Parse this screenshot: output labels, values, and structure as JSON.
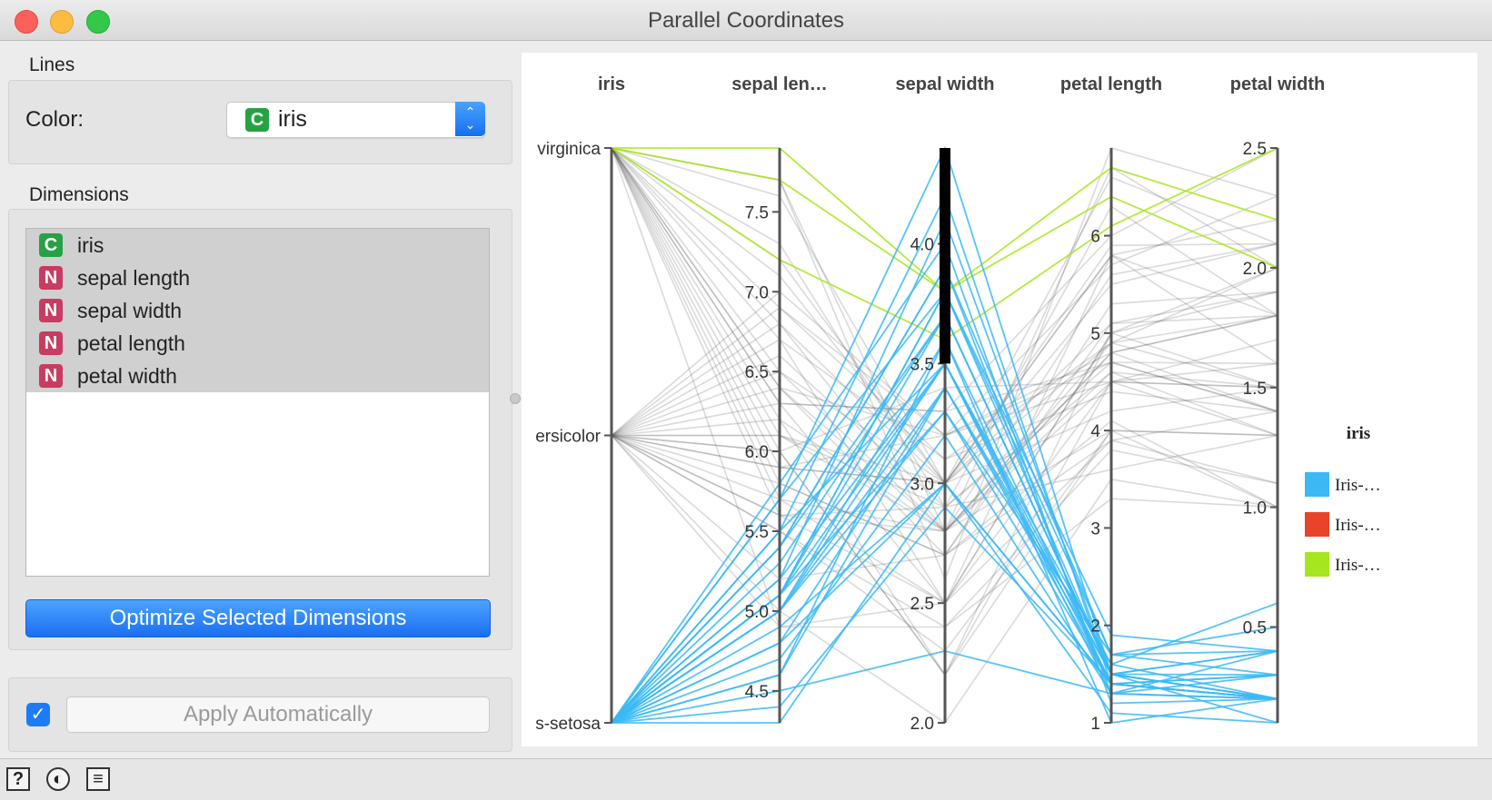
{
  "window": {
    "title": "Parallel Coordinates"
  },
  "controls": {
    "lines_label": "Lines",
    "color_label": "Color:",
    "color_value": "iris",
    "color_type_badge": "C",
    "dimensions_label": "Dimensions",
    "dimensions": [
      {
        "badge": "C",
        "label": "iris"
      },
      {
        "badge": "N",
        "label": "sepal length"
      },
      {
        "badge": "N",
        "label": "sepal width"
      },
      {
        "badge": "N",
        "label": "petal length"
      },
      {
        "badge": "N",
        "label": "petal width"
      }
    ],
    "optimize_button": "Optimize Selected Dimensions",
    "apply_checked": true,
    "apply_button": "Apply Automatically"
  },
  "statusbar": {
    "icons": [
      "help-icon",
      "report-icon",
      "output-icon"
    ],
    "help_glyph": "?"
  },
  "colors": {
    "accent": "#1a72f2",
    "setosa": "#3bb9f5",
    "versicolor": "#e8442a",
    "virginica": "#a6e61f",
    "context": "#555555",
    "brush": "#000000"
  },
  "chart_data": {
    "type": "parallel-coordinates",
    "axes": [
      {
        "title": "iris",
        "kind": "categorical",
        "ticks": [
          "virginica",
          "ersicolor",
          "s-setosa"
        ]
      },
      {
        "title": "sepal len…",
        "kind": "numeric",
        "range": [
          4.3,
          7.9
        ],
        "ticks": [
          "4.5",
          "5.0",
          "5.5",
          "6.0",
          "6.5",
          "7.0",
          "7.5"
        ]
      },
      {
        "title": "sepal width",
        "kind": "numeric",
        "range": [
          2.0,
          4.4
        ],
        "ticks": [
          "2.0",
          "2.5",
          "3.0",
          "3.5",
          "4.0"
        ],
        "brush": [
          3.5,
          4.4
        ]
      },
      {
        "title": "petal length",
        "kind": "numeric",
        "range": [
          1.0,
          6.9
        ],
        "ticks": [
          "1",
          "2",
          "3",
          "4",
          "5",
          "6"
        ]
      },
      {
        "title": "petal width",
        "kind": "numeric",
        "range": [
          0.1,
          2.5
        ],
        "ticks": [
          "0.5",
          "1.0",
          "1.5",
          "2.0",
          "2.5"
        ]
      }
    ],
    "legend": {
      "title": "iris",
      "items": [
        "Iris-…",
        "Iris-…",
        "Iris-…"
      ],
      "position": "right"
    },
    "highlighted_samples": [
      {
        "class": "virginica",
        "values": [
          7.9,
          3.8,
          6.4,
          2.0
        ]
      },
      {
        "class": "virginica",
        "values": [
          7.7,
          3.8,
          6.7,
          2.2
        ]
      },
      {
        "class": "virginica",
        "values": [
          7.2,
          3.6,
          6.1,
          2.5
        ]
      },
      {
        "class": "setosa",
        "values": [
          5.1,
          3.5,
          1.4,
          0.2
        ]
      },
      {
        "class": "setosa",
        "values": [
          4.9,
          3.0,
          1.4,
          0.2
        ]
      },
      {
        "class": "setosa",
        "values": [
          4.7,
          3.2,
          1.3,
          0.2
        ]
      },
      {
        "class": "setosa",
        "values": [
          5.4,
          3.9,
          1.7,
          0.4
        ]
      },
      {
        "class": "setosa",
        "values": [
          4.6,
          3.4,
          1.4,
          0.3
        ]
      },
      {
        "class": "setosa",
        "values": [
          5.0,
          3.4,
          1.5,
          0.2
        ]
      },
      {
        "class": "setosa",
        "values": [
          4.4,
          2.9,
          1.4,
          0.2
        ]
      },
      {
        "class": "setosa",
        "values": [
          5.4,
          3.7,
          1.5,
          0.2
        ]
      },
      {
        "class": "setosa",
        "values": [
          4.8,
          3.4,
          1.6,
          0.2
        ]
      },
      {
        "class": "setosa",
        "values": [
          5.8,
          4.0,
          1.2,
          0.2
        ]
      },
      {
        "class": "setosa",
        "values": [
          5.7,
          4.4,
          1.5,
          0.4
        ]
      },
      {
        "class": "setosa",
        "values": [
          5.4,
          3.9,
          1.3,
          0.4
        ]
      },
      {
        "class": "setosa",
        "values": [
          5.1,
          3.8,
          1.5,
          0.3
        ]
      },
      {
        "class": "setosa",
        "values": [
          5.7,
          3.8,
          1.7,
          0.3
        ]
      },
      {
        "class": "setosa",
        "values": [
          5.1,
          3.7,
          1.5,
          0.4
        ]
      },
      {
        "class": "setosa",
        "values": [
          4.6,
          3.6,
          1.0,
          0.2
        ]
      },
      {
        "class": "setosa",
        "values": [
          5.1,
          3.3,
          1.7,
          0.5
        ]
      },
      {
        "class": "setosa",
        "values": [
          5.2,
          3.5,
          1.5,
          0.2
        ]
      },
      {
        "class": "setosa",
        "values": [
          5.2,
          4.1,
          1.5,
          0.1
        ]
      },
      {
        "class": "setosa",
        "values": [
          5.5,
          4.2,
          1.4,
          0.2
        ]
      },
      {
        "class": "setosa",
        "values": [
          5.0,
          3.6,
          1.4,
          0.2
        ]
      },
      {
        "class": "setosa",
        "values": [
          5.3,
          3.7,
          1.5,
          0.2
        ]
      },
      {
        "class": "setosa",
        "values": [
          4.3,
          3.0,
          1.1,
          0.1
        ]
      },
      {
        "class": "setosa",
        "values": [
          5.5,
          3.5,
          1.3,
          0.2
        ]
      },
      {
        "class": "setosa",
        "values": [
          5.0,
          3.5,
          1.6,
          0.6
        ]
      },
      {
        "class": "setosa",
        "values": [
          4.8,
          3.0,
          1.4,
          0.3
        ]
      },
      {
        "class": "setosa",
        "values": [
          4.5,
          2.3,
          1.3,
          0.3
        ]
      },
      {
        "class": "setosa",
        "values": [
          5.1,
          3.8,
          1.9,
          0.4
        ]
      },
      {
        "class": "setosa",
        "values": [
          5.0,
          3.3,
          1.4,
          0.2
        ]
      }
    ],
    "context_samples": [
      {
        "class": "versicolor",
        "values": [
          7.0,
          3.2,
          4.7,
          1.4
        ]
      },
      {
        "class": "versicolor",
        "values": [
          6.4,
          3.2,
          4.5,
          1.5
        ]
      },
      {
        "class": "versicolor",
        "values": [
          6.9,
          3.1,
          4.9,
          1.5
        ]
      },
      {
        "class": "versicolor",
        "values": [
          5.5,
          2.3,
          4.0,
          1.3
        ]
      },
      {
        "class": "versicolor",
        "values": [
          6.5,
          2.8,
          4.6,
          1.5
        ]
      },
      {
        "class": "versicolor",
        "values": [
          5.7,
          2.8,
          4.5,
          1.3
        ]
      },
      {
        "class": "versicolor",
        "values": [
          6.3,
          3.3,
          4.7,
          1.6
        ]
      },
      {
        "class": "versicolor",
        "values": [
          4.9,
          2.4,
          3.3,
          1.0
        ]
      },
      {
        "class": "versicolor",
        "values": [
          6.6,
          2.9,
          4.6,
          1.3
        ]
      },
      {
        "class": "versicolor",
        "values": [
          5.2,
          2.7,
          3.9,
          1.4
        ]
      },
      {
        "class": "versicolor",
        "values": [
          5.0,
          2.0,
          3.5,
          1.0
        ]
      },
      {
        "class": "versicolor",
        "values": [
          5.9,
          3.0,
          4.2,
          1.5
        ]
      },
      {
        "class": "versicolor",
        "values": [
          6.0,
          2.2,
          4.0,
          1.0
        ]
      },
      {
        "class": "versicolor",
        "values": [
          6.1,
          2.9,
          4.7,
          1.4
        ]
      },
      {
        "class": "versicolor",
        "values": [
          5.6,
          2.9,
          3.6,
          1.3
        ]
      },
      {
        "class": "versicolor",
        "values": [
          6.7,
          3.1,
          4.4,
          1.4
        ]
      },
      {
        "class": "versicolor",
        "values": [
          5.8,
          2.7,
          4.1,
          1.0
        ]
      },
      {
        "class": "versicolor",
        "values": [
          6.2,
          2.2,
          4.5,
          1.5
        ]
      },
      {
        "class": "versicolor",
        "values": [
          5.6,
          2.5,
          3.9,
          1.1
        ]
      },
      {
        "class": "versicolor",
        "values": [
          5.9,
          3.2,
          4.8,
          1.8
        ]
      },
      {
        "class": "versicolor",
        "values": [
          6.1,
          2.8,
          4.0,
          1.3
        ]
      },
      {
        "class": "versicolor",
        "values": [
          6.8,
          2.8,
          4.8,
          1.4
        ]
      },
      {
        "class": "versicolor",
        "values": [
          5.5,
          2.4,
          3.8,
          1.1
        ]
      },
      {
        "class": "versicolor",
        "values": [
          6.0,
          3.4,
          4.5,
          1.6
        ]
      },
      {
        "class": "virginica",
        "values": [
          6.3,
          3.3,
          6.0,
          2.5
        ]
      },
      {
        "class": "virginica",
        "values": [
          5.8,
          2.7,
          5.1,
          1.9
        ]
      },
      {
        "class": "virginica",
        "values": [
          7.1,
          3.0,
          5.9,
          2.1
        ]
      },
      {
        "class": "virginica",
        "values": [
          6.5,
          3.0,
          5.8,
          2.2
        ]
      },
      {
        "class": "virginica",
        "values": [
          7.6,
          3.0,
          6.6,
          2.1
        ]
      },
      {
        "class": "virginica",
        "values": [
          4.9,
          2.5,
          4.5,
          1.7
        ]
      },
      {
        "class": "virginica",
        "values": [
          7.3,
          2.9,
          6.3,
          1.8
        ]
      },
      {
        "class": "virginica",
        "values": [
          6.7,
          2.5,
          5.8,
          1.8
        ]
      },
      {
        "class": "virginica",
        "values": [
          6.4,
          2.7,
          5.3,
          1.9
        ]
      },
      {
        "class": "virginica",
        "values": [
          6.8,
          3.0,
          5.5,
          2.1
        ]
      },
      {
        "class": "virginica",
        "values": [
          5.7,
          2.5,
          5.0,
          2.0
        ]
      },
      {
        "class": "virginica",
        "values": [
          7.7,
          2.6,
          6.9,
          2.3
        ]
      },
      {
        "class": "virginica",
        "values": [
          6.0,
          2.2,
          5.0,
          1.5
        ]
      },
      {
        "class": "virginica",
        "values": [
          6.9,
          3.2,
          5.7,
          2.3
        ]
      },
      {
        "class": "virginica",
        "values": [
          5.6,
          2.8,
          4.9,
          2.0
        ]
      },
      {
        "class": "virginica",
        "values": [
          7.7,
          2.8,
          6.7,
          2.0
        ]
      },
      {
        "class": "virginica",
        "values": [
          6.2,
          2.8,
          4.8,
          1.8
        ]
      },
      {
        "class": "virginica",
        "values": [
          6.1,
          3.0,
          4.9,
          1.8
        ]
      },
      {
        "class": "virginica",
        "values": [
          6.4,
          2.8,
          5.6,
          2.1
        ]
      },
      {
        "class": "virginica",
        "values": [
          7.2,
          3.0,
          5.8,
          1.6
        ]
      },
      {
        "class": "virginica",
        "values": [
          6.3,
          2.5,
          5.0,
          1.9
        ]
      },
      {
        "class": "virginica",
        "values": [
          5.9,
          3.0,
          5.1,
          1.8
        ]
      }
    ]
  }
}
